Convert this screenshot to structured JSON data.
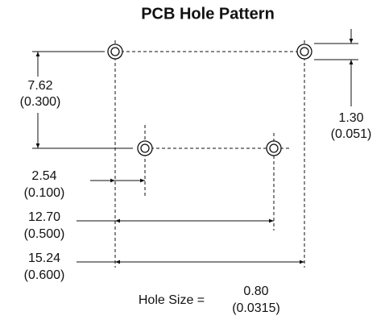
{
  "title": "PCB Hole Pattern",
  "dimensions": [
    {
      "mm": "7.62",
      "inch": "(0.300)"
    },
    {
      "mm": "1.30",
      "inch": "(0.051)"
    },
    {
      "mm": "2.54",
      "inch": "(0.100)"
    },
    {
      "mm": "12.70",
      "inch": "(0.500)"
    },
    {
      "mm": "15.24",
      "inch": "(0.600)"
    }
  ],
  "hole_size": {
    "label": "Hole Size =",
    "mm": "0.80",
    "inch": "(0.0315)"
  }
}
